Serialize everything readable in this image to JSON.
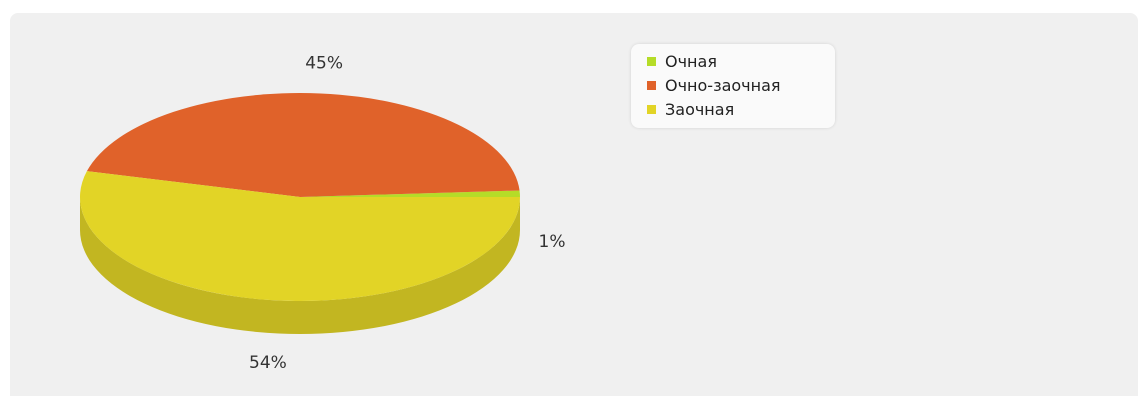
{
  "chart_data": {
    "type": "pie",
    "title": "",
    "slices": [
      {
        "name": "Очная",
        "value": 1,
        "label": "1%",
        "color": "#b5dc28"
      },
      {
        "name": "Очно-заочная",
        "value": 45,
        "label": "45%",
        "color": "#e0622a"
      },
      {
        "name": "Заочная",
        "value": 54,
        "label": "54%",
        "color": "#e2d426"
      }
    ],
    "legend_position": "top-right",
    "style": "3d"
  },
  "legend": {
    "items": [
      {
        "label": "Очная",
        "color": "#b5dc28"
      },
      {
        "label": "Очно-заочная",
        "color": "#e0622a"
      },
      {
        "label": "Заочная",
        "color": "#e2d426"
      }
    ]
  }
}
